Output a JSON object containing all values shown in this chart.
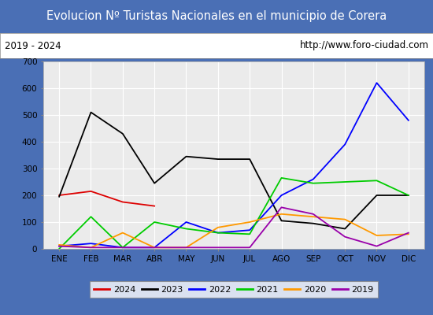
{
  "title": "Evolucion Nº Turistas Nacionales en el municipio de Corera",
  "subtitle_left": "2019 - 2024",
  "subtitle_right": "http://www.foro-ciudad.com",
  "x_labels": [
    "ENE",
    "FEB",
    "MAR",
    "ABR",
    "MAY",
    "JUN",
    "JUL",
    "AGO",
    "SEP",
    "OCT",
    "NOV",
    "DIC"
  ],
  "ylim": [
    0,
    700
  ],
  "yticks": [
    0,
    100,
    200,
    300,
    400,
    500,
    600,
    700
  ],
  "series": {
    "2024": {
      "color": "#dd0000",
      "values": [
        200,
        215,
        175,
        160,
        null,
        null,
        null,
        null,
        null,
        null,
        null,
        null
      ]
    },
    "2023": {
      "color": "#000000",
      "values": [
        195,
        510,
        430,
        245,
        345,
        335,
        335,
        105,
        95,
        75,
        200,
        200
      ]
    },
    "2022": {
      "color": "#0000ff",
      "values": [
        10,
        20,
        5,
        5,
        100,
        60,
        70,
        200,
        260,
        390,
        620,
        480
      ]
    },
    "2021": {
      "color": "#00cc00",
      "values": [
        0,
        120,
        5,
        100,
        75,
        60,
        55,
        265,
        245,
        250,
        255,
        200
      ]
    },
    "2020": {
      "color": "#ff9900",
      "values": [
        15,
        5,
        60,
        5,
        5,
        80,
        100,
        130,
        120,
        110,
        50,
        55
      ]
    },
    "2019": {
      "color": "#9900aa",
      "values": [
        10,
        5,
        5,
        5,
        5,
        5,
        5,
        155,
        130,
        45,
        10,
        60
      ]
    }
  },
  "title_bg_color": "#4a6fb5",
  "title_text_color": "#ffffff",
  "plot_bg_color": "#ebebeb",
  "grid_color": "#ffffff",
  "outer_bg_color": "#4a6fb5",
  "subtitle_bg_color": "#ffffff",
  "legend_order": [
    "2024",
    "2023",
    "2022",
    "2021",
    "2020",
    "2019"
  ]
}
